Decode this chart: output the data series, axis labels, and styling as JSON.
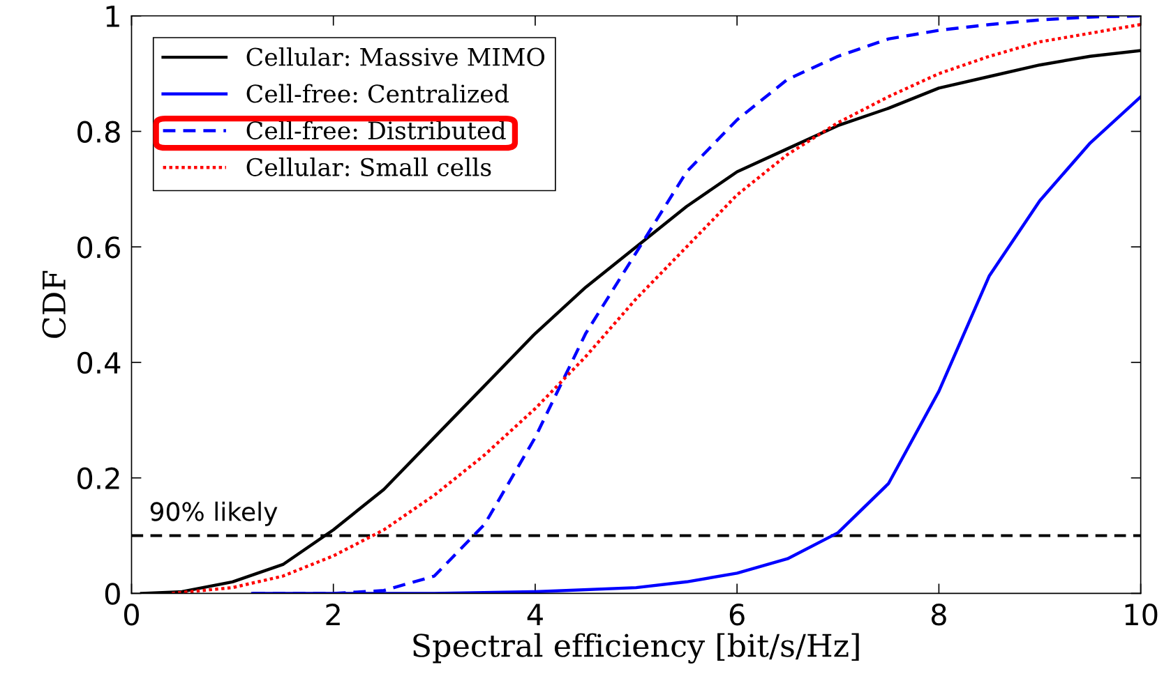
{
  "chart_data": {
    "type": "line",
    "xlabel": "Spectral efficiency [bit/s/Hz]",
    "ylabel": "CDF",
    "xlim": [
      0,
      10
    ],
    "ylim": [
      0,
      1
    ],
    "xticks": [
      0,
      2,
      4,
      6,
      8,
      10
    ],
    "yticks": [
      0,
      0.2,
      0.4,
      0.6,
      0.8,
      1
    ],
    "grid": false,
    "legend": "top left",
    "series": [
      {
        "name": "Cellular: Massive MIMO",
        "color": "#000000",
        "line_style": "solid",
        "x": [
          0.1,
          0.5,
          1,
          1.5,
          2,
          2.5,
          3,
          3.5,
          4,
          4.5,
          5,
          5.5,
          6,
          6.5,
          7,
          7.5,
          8,
          8.5,
          9,
          9.5,
          10
        ],
        "values": [
          0,
          0.003,
          0.02,
          0.05,
          0.11,
          0.18,
          0.27,
          0.36,
          0.45,
          0.53,
          0.6,
          0.67,
          0.73,
          0.77,
          0.81,
          0.84,
          0.875,
          0.895,
          0.915,
          0.93,
          0.94
        ]
      },
      {
        "name": "Cell-free: Centralized",
        "color": "#0000ff",
        "line_style": "solid",
        "x": [
          1.2,
          3,
          4,
          5,
          5.5,
          6,
          6.5,
          7,
          7.5,
          8,
          8.5,
          9,
          9.5,
          10
        ],
        "values": [
          0,
          0,
          0.003,
          0.01,
          0.02,
          0.035,
          0.06,
          0.105,
          0.19,
          0.35,
          0.55,
          0.68,
          0.78,
          0.86
        ]
      },
      {
        "name": "Cell-free: Distributed",
        "color": "#0000ff",
        "line_style": "dashed",
        "x": [
          1.2,
          2,
          2.5,
          3,
          3.5,
          4,
          4.5,
          5,
          5.5,
          6,
          6.5,
          7,
          7.5,
          8,
          8.5,
          9,
          9.5,
          10
        ],
        "values": [
          0,
          0,
          0.005,
          0.03,
          0.12,
          0.27,
          0.45,
          0.59,
          0.73,
          0.82,
          0.89,
          0.93,
          0.96,
          0.975,
          0.985,
          0.993,
          0.998,
          1.0
        ]
      },
      {
        "name": "Cellular: Small cells",
        "color": "#ff0000",
        "line_style": "dotted",
        "x": [
          0.4,
          1,
          1.5,
          2,
          2.5,
          3,
          3.5,
          4,
          4.5,
          5,
          5.5,
          6,
          6.5,
          7,
          7.5,
          8,
          8.5,
          9,
          9.5,
          10
        ],
        "values": [
          0,
          0.01,
          0.03,
          0.065,
          0.11,
          0.17,
          0.24,
          0.32,
          0.41,
          0.51,
          0.6,
          0.69,
          0.76,
          0.815,
          0.86,
          0.9,
          0.93,
          0.955,
          0.97,
          0.985
        ]
      }
    ],
    "ref_lines": [
      {
        "axis": "y",
        "value": 0.1,
        "label": "90% likely",
        "color": "#000000",
        "line_style": "dashed"
      }
    ]
  }
}
